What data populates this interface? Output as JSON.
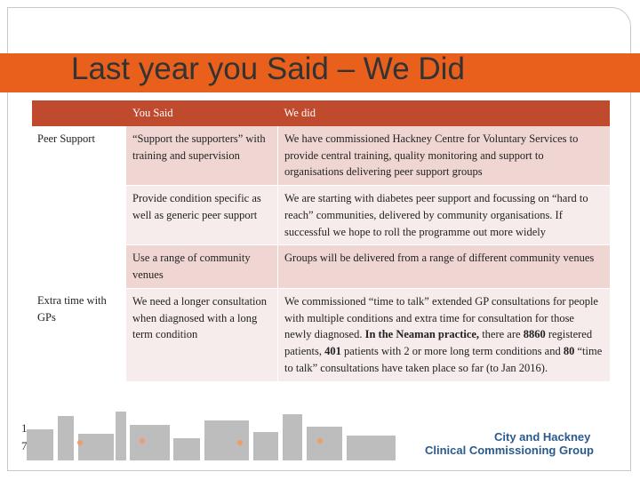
{
  "title": "Last year you Said – We Did",
  "table": {
    "header": [
      "You Said",
      "We did"
    ],
    "groups": [
      {
        "label": "Peer Support",
        "rows": [
          {
            "said": "“Support the supporters” with training and supervision",
            "did": [
              {
                "text": "We have commissioned Hackney Centre for Voluntary Services to provide central training, quality monitoring and support to organisations delivering peer support groups"
              }
            ]
          },
          {
            "said": "Provide condition specific as well as generic peer support",
            "did": [
              {
                "text": "We are starting with diabetes peer support and focussing on “hard to reach” communities, delivered by community organisations. If successful we hope to roll the programme out more widely"
              }
            ]
          },
          {
            "said": "Use a range of community venues",
            "did": [
              {
                "text": "Groups will be delivered from a range of different community venues"
              }
            ]
          }
        ]
      },
      {
        "label": "Extra time with GPs",
        "rows": [
          {
            "said": "We need a longer consultation when diagnosed with a long term condition",
            "did": [
              {
                "text": "We commissioned “time to talk” extended GP consultations for people with multiple conditions and extra time for consultation for those newly diagnosed. "
              },
              {
                "text": "In the Neaman practice,",
                "bold": true
              },
              {
                "text": " there are "
              },
              {
                "text": "8860",
                "bold": true
              },
              {
                "text": " registered patients, "
              },
              {
                "text": "401",
                "bold": true
              },
              {
                "text": " patients with 2 or more long term conditions and "
              },
              {
                "text": "80",
                "bold": true
              },
              {
                "text": " “time to talk” consultations have taken place so far (to Jan 2016)."
              }
            ]
          }
        ]
      }
    ]
  },
  "page_number": "17",
  "logo": {
    "lines": [
      "City and Hackney",
      "Clinical Commissioning Group"
    ]
  }
}
